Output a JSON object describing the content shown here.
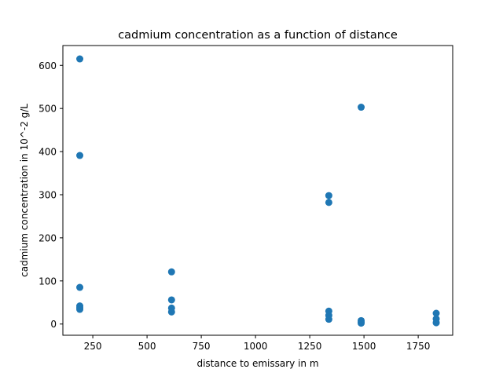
{
  "chart_data": {
    "type": "scatter",
    "title": "cadmium concentration as a function of distance",
    "xlabel": "distance to emissary in m",
    "ylabel": "cadmium concentration in 10^-2 g/L",
    "xlim": [
      112,
      1909
    ],
    "ylim": [
      -26,
      646
    ],
    "xticks": [
      250,
      500,
      750,
      1000,
      1250,
      1500,
      1750
    ],
    "yticks": [
      0,
      100,
      200,
      300,
      400,
      500,
      600
    ],
    "grid": false,
    "point_color": "#1f77b4",
    "series": [
      {
        "points": [
          {
            "x": 190,
            "y": 615
          },
          {
            "x": 190,
            "y": 391
          },
          {
            "x": 190,
            "y": 85
          },
          {
            "x": 190,
            "y": 42
          },
          {
            "x": 190,
            "y": 38
          },
          {
            "x": 190,
            "y": 34
          },
          {
            "x": 613,
            "y": 121
          },
          {
            "x": 613,
            "y": 56
          },
          {
            "x": 613,
            "y": 37
          },
          {
            "x": 613,
            "y": 28
          },
          {
            "x": 1338,
            "y": 298
          },
          {
            "x": 1338,
            "y": 282
          },
          {
            "x": 1338,
            "y": 30
          },
          {
            "x": 1338,
            "y": 20
          },
          {
            "x": 1338,
            "y": 11
          },
          {
            "x": 1487,
            "y": 503
          },
          {
            "x": 1487,
            "y": 8
          },
          {
            "x": 1487,
            "y": 4
          },
          {
            "x": 1487,
            "y": 2
          },
          {
            "x": 1833,
            "y": 25
          },
          {
            "x": 1833,
            "y": 12
          },
          {
            "x": 1833,
            "y": 3
          }
        ]
      }
    ]
  }
}
